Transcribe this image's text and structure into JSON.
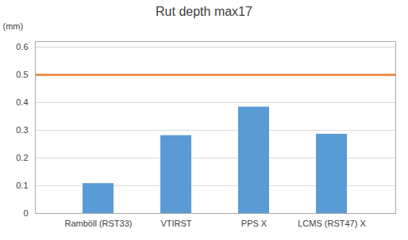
{
  "chart_data": {
    "type": "bar",
    "title": "Rut depth max17",
    "categories": [
      "Ramböll (RST33)",
      "VTIRST",
      "PPS X",
      "LCMS (RST47) X"
    ],
    "values": [
      0.108,
      0.281,
      0.384,
      0.286
    ],
    "color": "#5B9BD5",
    "hline": {
      "value": 0.5,
      "color": "#ED7D31"
    },
    "ylabel": "(mm)",
    "ylim": [
      0,
      0.62
    ],
    "yticks": [
      0,
      0.1,
      0.2,
      0.3,
      0.4,
      0.5,
      0.6
    ],
    "grid": true
  }
}
